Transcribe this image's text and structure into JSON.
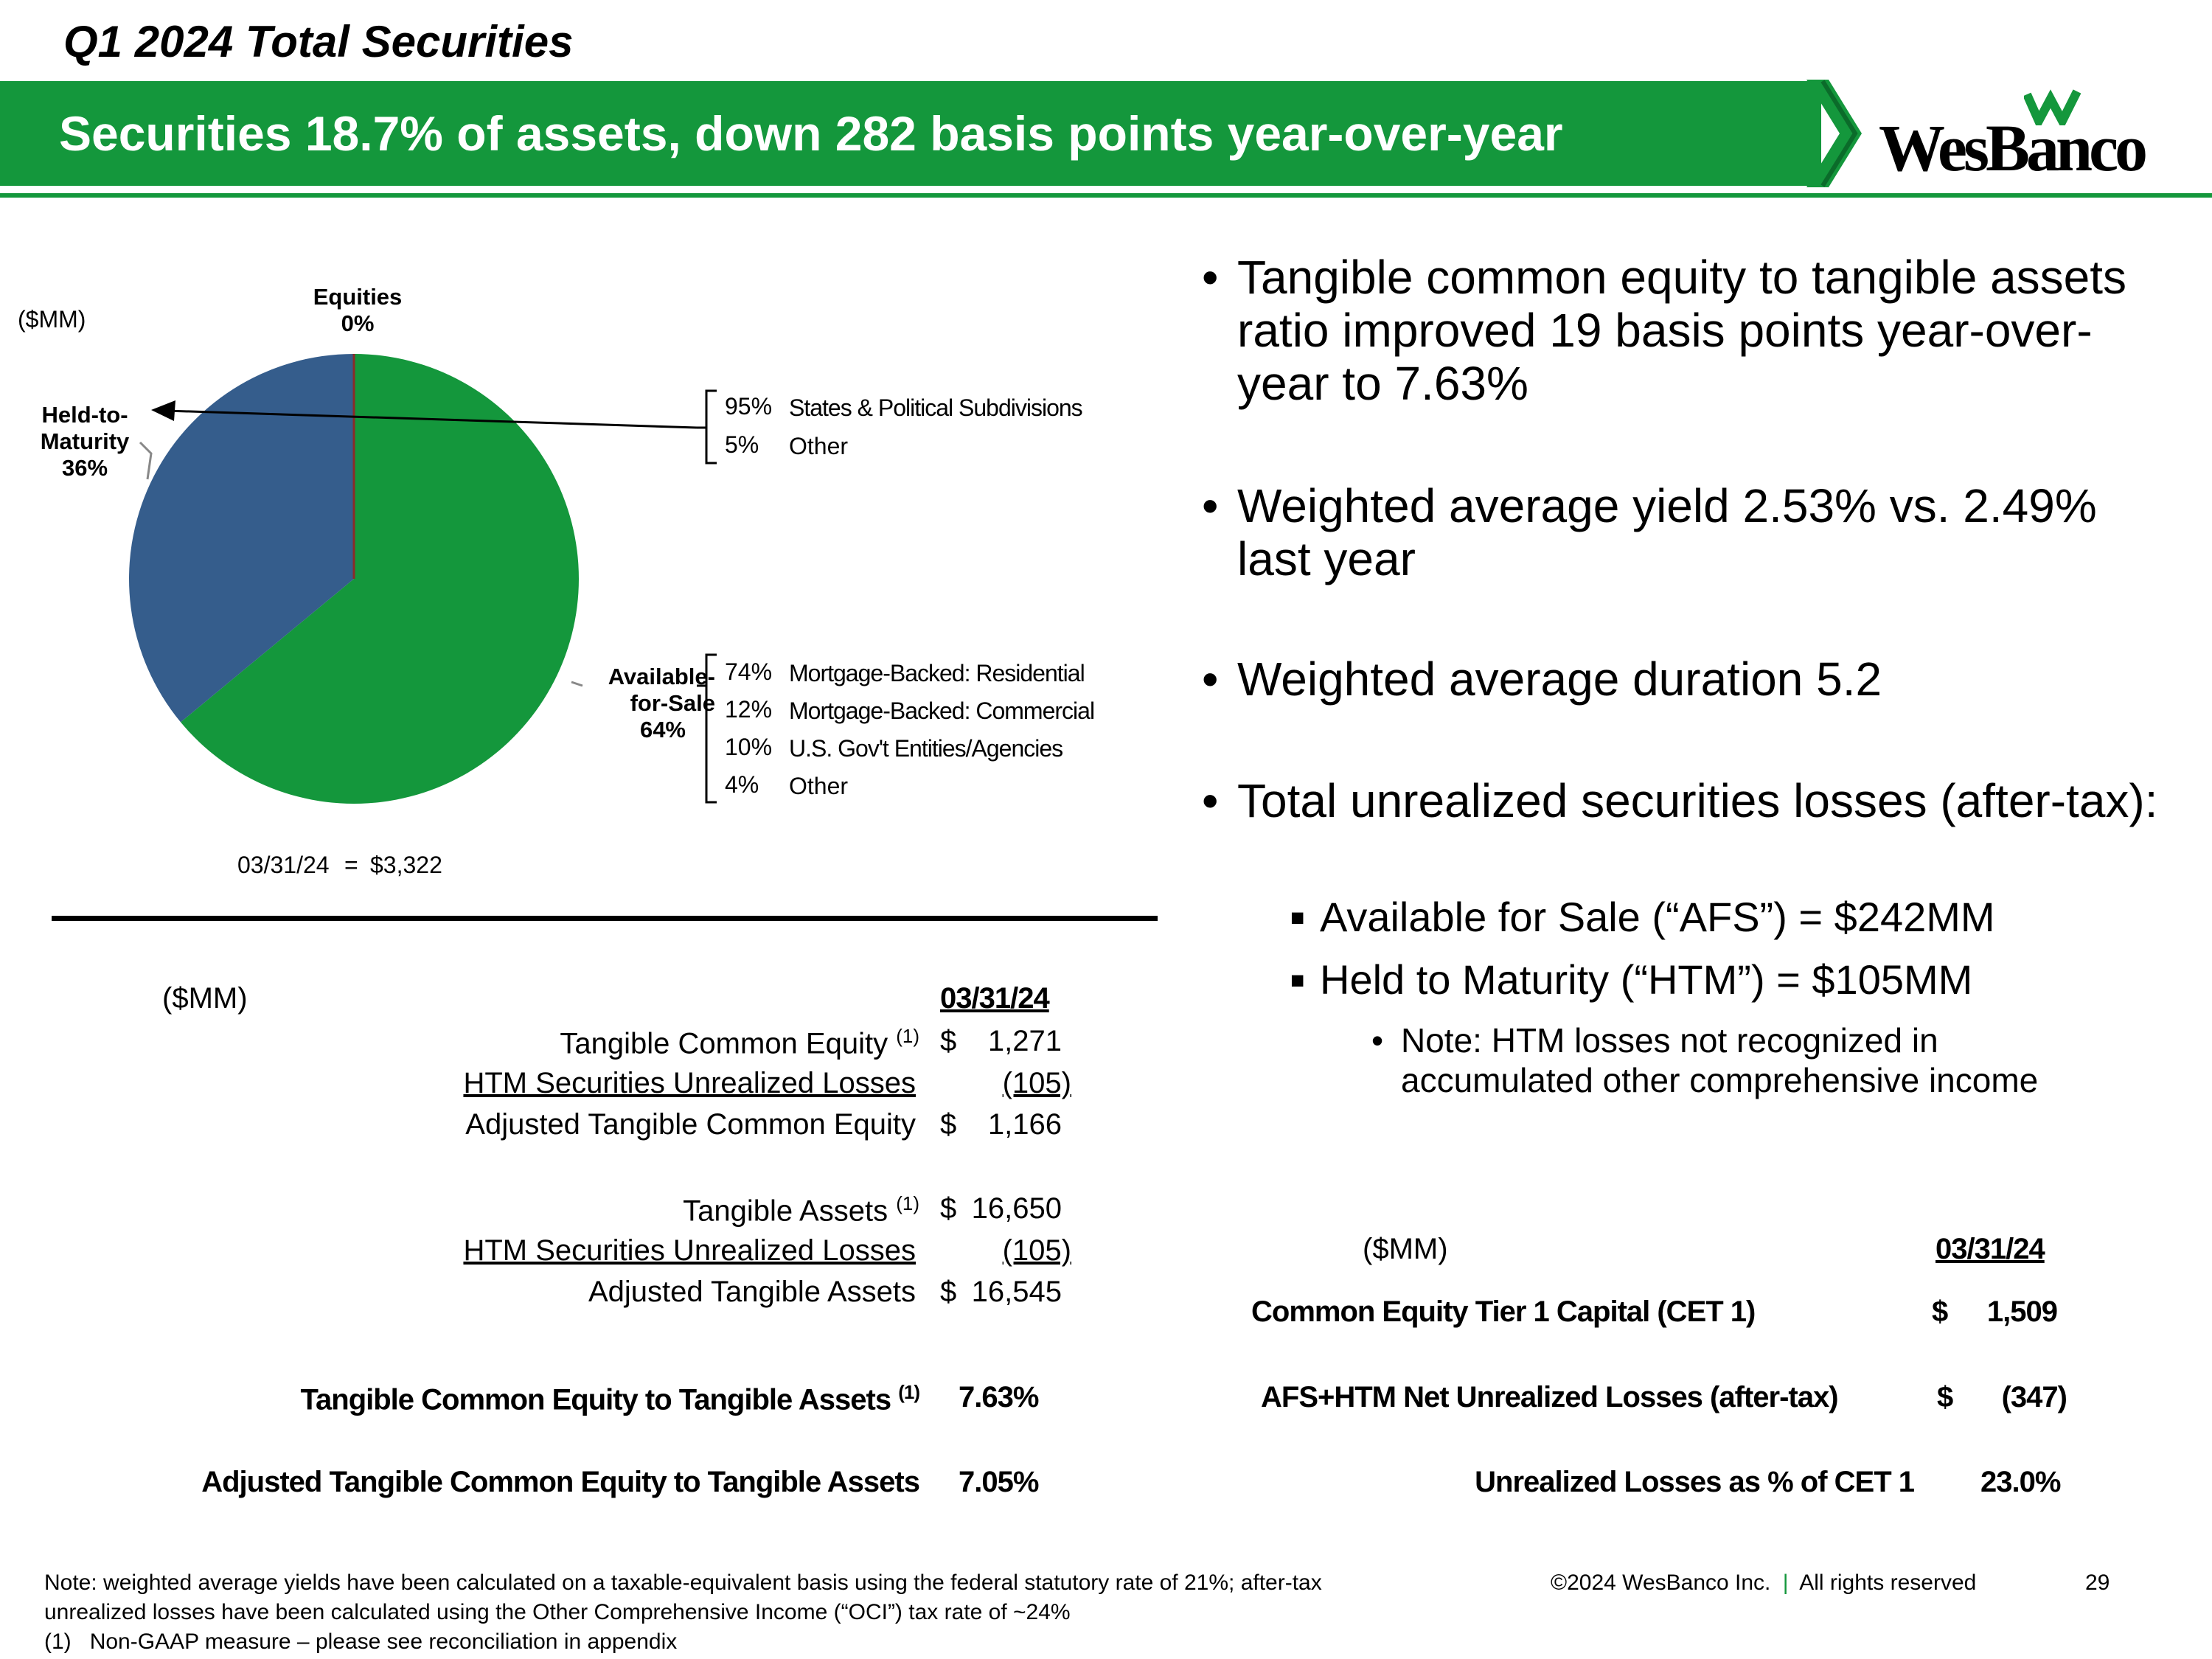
{
  "header": {
    "title": "Q1 2024 Total Securities",
    "banner": "Securities 18.7% of assets, down 282 basis points year-over-year",
    "logo": "WesBanco"
  },
  "chart_data": {
    "type": "pie",
    "unit_label": "($MM)",
    "slices": [
      {
        "label": "Held-to-Maturity",
        "pct_label": "36%",
        "value": 36,
        "color": "#355d8c"
      },
      {
        "label": "Available-for-Sale",
        "pct_label": "64%",
        "value": 64,
        "color": "#14973c"
      },
      {
        "label": "Equities",
        "pct_label": "0%",
        "value": 0,
        "color": "#8b2a2a"
      }
    ],
    "htm_breakdown": [
      {
        "pct": "95%",
        "label": "States & Political Subdivisions"
      },
      {
        "pct": "5%",
        "label": "Other"
      }
    ],
    "afs_breakdown": [
      {
        "pct": "74%",
        "label": "Mortgage-Backed: Residential"
      },
      {
        "pct": "12%",
        "label": "Mortgage-Backed: Commercial"
      },
      {
        "pct": "10%",
        "label": "U.S. Gov't Entities/Agencies"
      },
      {
        "pct": "4%",
        "label": "Other"
      }
    ],
    "total_label": "03/31/24",
    "total_eq": "=",
    "total_value": "$3,322"
  },
  "bullets": {
    "b1": "Tangible common equity to tangible assets ratio improved 19 basis points year-over-year to 7.63%",
    "b2": "Weighted average yield 2.53% vs. 2.49% last year",
    "b3": "Weighted average duration 5.2",
    "b4": "Total unrealized securities losses (after-tax):",
    "b4a": "Available for Sale (“AFS”) = $242MM",
    "b4b": "Held to Maturity (“HTM”) = $105MM",
    "b4b1": "Note: HTM losses not recognized in accumulated other comprehensive income"
  },
  "left_table": {
    "unit": "($MM)",
    "date_header": "03/31/24",
    "rows": [
      {
        "label": "Tangible Common Equity",
        "sup": "(1)",
        "dollar": "$",
        "value": "1,271"
      },
      {
        "label": "HTM Securities Unrealized Losses",
        "value": "(105)"
      },
      {
        "label": "Adjusted Tangible Common Equity",
        "dollar": "$",
        "value": "1,166"
      },
      {
        "label": "Tangible Assets",
        "sup": "(1)",
        "dollar": "$",
        "value": "16,650"
      },
      {
        "label": "HTM Securities Unrealized Losses",
        "value": "(105)"
      },
      {
        "label": "Adjusted Tangible Assets",
        "dollar": "$",
        "value": "16,545"
      }
    ],
    "ratio1_label": "Tangible Common Equity to Tangible Assets",
    "ratio1_sup": "(1)",
    "ratio1_value": "7.63%",
    "ratio2_label": "Adjusted Tangible Common Equity to Tangible Assets",
    "ratio2_value": "7.05%"
  },
  "right_table": {
    "unit": "($MM)",
    "date_header": "03/31/24",
    "r1_label": "Common Equity Tier 1 Capital (CET 1)",
    "r1_dollar": "$",
    "r1_value": "1,509",
    "r2_label": "AFS+HTM Net Unrealized Losses (after-tax)",
    "r2_dollar": "$",
    "r2_value": "(347)",
    "r3_label": "Unrealized Losses as % of CET 1",
    "r3_value": "23.0%"
  },
  "footer": {
    "note1": "Note: weighted average yields have been calculated on a taxable-equivalent basis using the federal statutory rate of 21%; after-tax",
    "note2": "unrealized losses have been calculated using the Other Comprehensive Income (“OCI”) tax rate of ~24%",
    "note3_num": "(1)",
    "note3": "Non-GAAP measure – please see reconciliation in appendix",
    "copyright": "©2024 WesBanco Inc.",
    "sep": "|",
    "rights": "All rights reserved",
    "page": "29"
  }
}
